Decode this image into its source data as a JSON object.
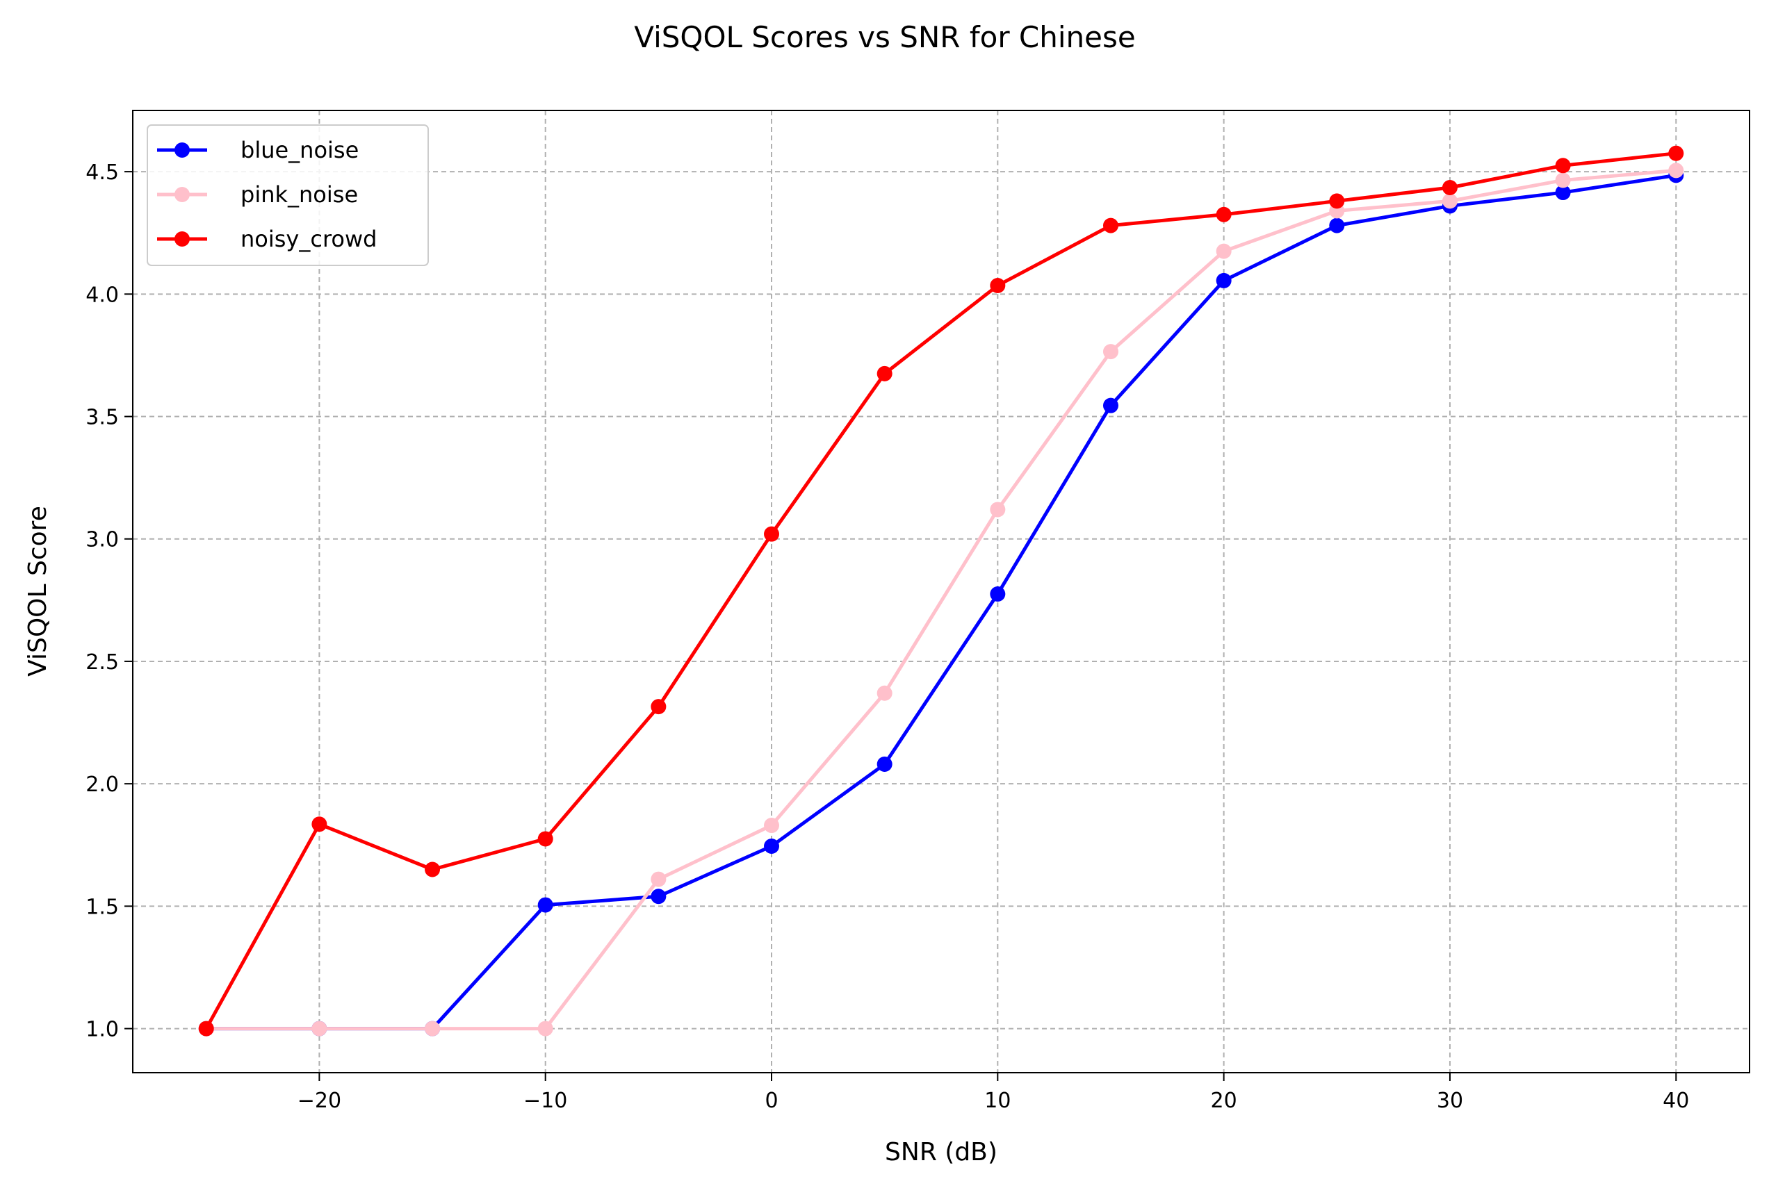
{
  "chart_data": {
    "type": "line",
    "title": "ViSQOL Scores vs SNR for Chinese",
    "xlabel": "SNR (dB)",
    "ylabel": "ViSQOL Score",
    "xlim": [
      -28.25,
      43.25
    ],
    "ylim": [
      0.82,
      4.75
    ],
    "xticks": [
      -20,
      -10,
      0,
      10,
      20,
      30,
      40
    ],
    "xtick_labels": [
      "−20",
      "−10",
      "0",
      "10",
      "20",
      "30",
      "40"
    ],
    "yticks": [
      1.0,
      1.5,
      2.0,
      2.5,
      3.0,
      3.5,
      4.0,
      4.5
    ],
    "ytick_labels": [
      "1.0",
      "1.5",
      "2.0",
      "2.5",
      "3.0",
      "3.5",
      "4.0",
      "4.5"
    ],
    "grid": true,
    "legend_position": "top-left",
    "x": [
      -25,
      -20,
      -15,
      -10,
      -5,
      0,
      5,
      10,
      15,
      20,
      25,
      30,
      35,
      40
    ],
    "series": [
      {
        "name": "blue_noise",
        "color": "#0000ff",
        "values": [
          1.0,
          1.0,
          1.0,
          1.505,
          1.54,
          1.745,
          2.08,
          2.775,
          3.545,
          4.055,
          4.28,
          4.36,
          4.415,
          4.485
        ]
      },
      {
        "name": "pink_noise",
        "color": "#ffc0cb",
        "values": [
          1.0,
          1.0,
          1.0,
          1.0,
          1.61,
          1.83,
          2.37,
          3.12,
          3.765,
          4.175,
          4.34,
          4.38,
          4.465,
          4.505
        ]
      },
      {
        "name": "noisy_crowd",
        "color": "#ff0000",
        "values": [
          1.0,
          1.835,
          1.65,
          1.775,
          2.315,
          3.02,
          3.675,
          4.035,
          4.28,
          4.325,
          4.38,
          4.435,
          4.525,
          4.575
        ]
      }
    ]
  }
}
